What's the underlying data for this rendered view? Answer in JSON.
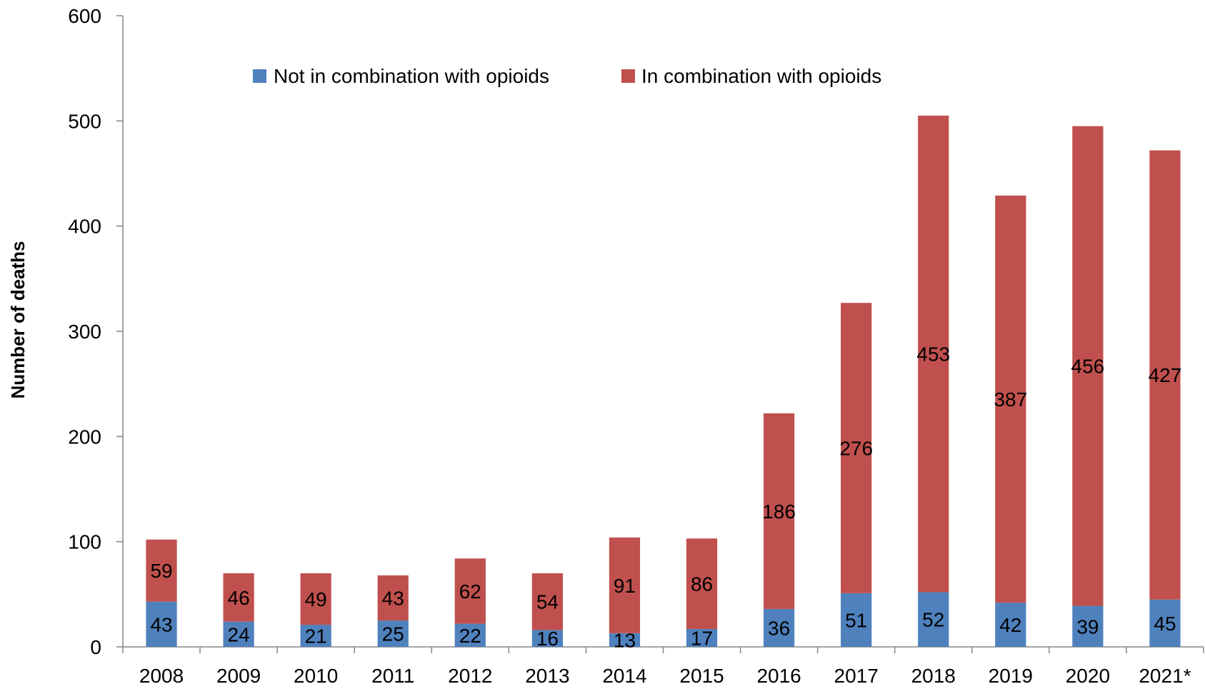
{
  "chart_data": {
    "type": "bar",
    "stacked": true,
    "categories": [
      "2008",
      "2009",
      "2010",
      "2011",
      "2012",
      "2013",
      "2014",
      "2015",
      "2016",
      "2017",
      "2018",
      "2019",
      "2020",
      "2021*"
    ],
    "series": [
      {
        "name": "Not in combination with opioids",
        "color": "#4f81bd",
        "values": [
          43,
          24,
          21,
          25,
          22,
          16,
          13,
          17,
          36,
          51,
          52,
          42,
          39,
          45
        ]
      },
      {
        "name": "In combination with opioids",
        "color": "#c0504d",
        "values": [
          59,
          46,
          49,
          43,
          62,
          54,
          91,
          86,
          186,
          276,
          453,
          387,
          456,
          427
        ]
      }
    ],
    "ylabel": "Number of deaths",
    "xlabel": "",
    "ylim": [
      0,
      600
    ],
    "yticks": [
      0,
      100,
      200,
      300,
      400,
      500,
      600
    ],
    "grid": false,
    "legend_position": "top-center",
    "data_labels": true
  }
}
